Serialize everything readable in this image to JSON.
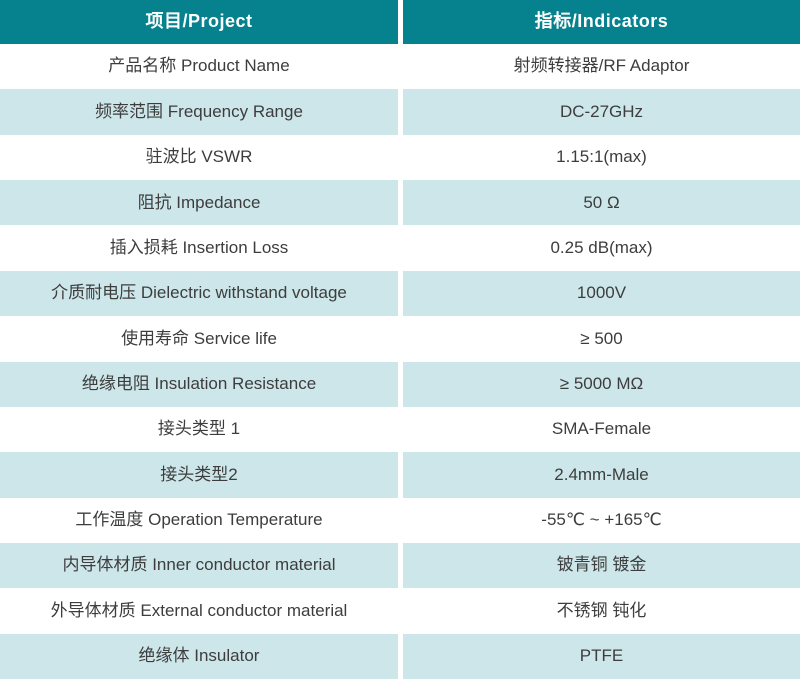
{
  "colors": {
    "header_bg": "#06828E",
    "header_text": "#FFFFFF",
    "row_bg": "#FFFFFF",
    "row_alt_bg": "#CCE6EA",
    "body_text": "#3D3D3D"
  },
  "table": {
    "headers": {
      "project": "项目/Project",
      "indicators": "指标/Indicators"
    },
    "rows": [
      {
        "project": "产品名称 Product Name",
        "indicator": "射频转接器/RF Adaptor"
      },
      {
        "project": "频率范围 Frequency Range",
        "indicator": "DC-27GHz"
      },
      {
        "project": "驻波比 VSWR",
        "indicator": "1.15:1(max)"
      },
      {
        "project": "阻抗 Impedance",
        "indicator": "50 Ω"
      },
      {
        "project": "插入损耗 Insertion Loss",
        "indicator": "0.25 dB(max)"
      },
      {
        "project": "介质耐电压 Dielectric withstand voltage",
        "indicator": "1000V"
      },
      {
        "project": "使用寿命 Service life",
        "indicator": "≥ 500"
      },
      {
        "project": "绝缘电阻 Insulation Resistance",
        "indicator": "≥ 5000 MΩ"
      },
      {
        "project": "接头类型 1",
        "indicator": "SMA-Female"
      },
      {
        "project": "接头类型2",
        "indicator": "2.4mm-Male"
      },
      {
        "project": "工作温度 Operation Temperature",
        "indicator": "-55℃ ~ +165℃"
      },
      {
        "project": "内导体材质 Inner conductor material",
        "indicator": "铍青铜 镀金"
      },
      {
        "project": "外导体材质 External conductor material",
        "indicator": "不锈钢 钝化"
      },
      {
        "project": "绝缘体 Insulator",
        "indicator": "PTFE"
      }
    ]
  }
}
